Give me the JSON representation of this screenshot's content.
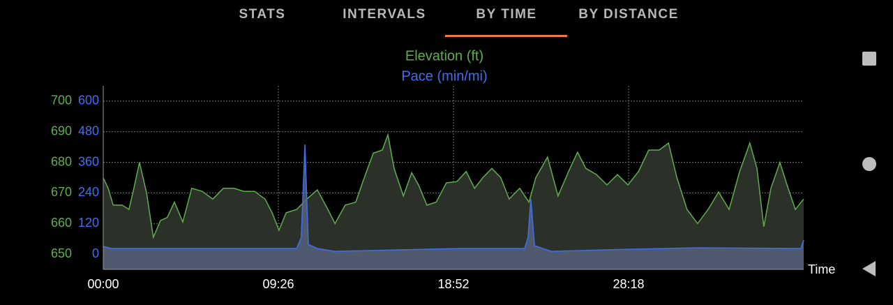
{
  "tabs": [
    "STATS",
    "INTERVALS",
    "BY TIME",
    "BY DISTANCE"
  ],
  "active_tab": 2,
  "chart_data": {
    "type": "area",
    "x_label": "Time",
    "xlim": [
      0,
      2264
    ],
    "xticks": [
      {
        "value": 0,
        "label": "00:00"
      },
      {
        "value": 566,
        "label": "09:26"
      },
      {
        "value": 1132,
        "label": "18:52"
      },
      {
        "value": 1698,
        "label": "28:18"
      }
    ],
    "ylim": [
      645,
      705
    ],
    "yticks": [
      650,
      660,
      670,
      680,
      690,
      700
    ],
    "y2lim": [
      -60,
      660
    ],
    "y2ticks": [
      0,
      120,
      240,
      360,
      480,
      600
    ],
    "grid": true,
    "series": [
      {
        "name": "Elevation (ft)",
        "color": "#5fae4e",
        "fill": "#2b3129",
        "x": [
          0,
          16,
          32,
          61,
          83,
          99,
          117,
          140,
          162,
          185,
          207,
          230,
          257,
          286,
          320,
          354,
          388,
          422,
          455,
          489,
          523,
          546,
          568,
          591,
          625,
          658,
          692,
          726,
          749,
          782,
          816,
          839,
          873,
          902,
          920,
          940,
          970,
          997,
          1019,
          1046,
          1076,
          1109,
          1143,
          1173,
          1200,
          1227,
          1256,
          1285,
          1312,
          1346,
          1376,
          1398,
          1436,
          1470,
          1504,
          1533,
          1560,
          1594,
          1628,
          1662,
          1696,
          1730,
          1763,
          1797,
          1827,
          1854,
          1887,
          1921,
          1955,
          1989,
          2023,
          2057,
          2090,
          2113,
          2135,
          2158,
          2187,
          2210,
          2237,
          2264
        ],
        "values": [
          674.9,
          671.5,
          666,
          666,
          664.6,
          671.5,
          680,
          670,
          655.5,
          661,
          662,
          667,
          660.5,
          671.5,
          670.5,
          668,
          671.5,
          671.5,
          670.5,
          670.5,
          668,
          663.5,
          657.8,
          663.5,
          664.6,
          668,
          671,
          664.6,
          660,
          666,
          667,
          673.7,
          683,
          684,
          689,
          678,
          669,
          676.6,
          672.6,
          666,
          667,
          673.3,
          673.7,
          677,
          671.5,
          675,
          678,
          675,
          668,
          671.5,
          667,
          675,
          681.7,
          669,
          677,
          683.3,
          678,
          676,
          672.6,
          676,
          672.6,
          677,
          684,
          684,
          686.3,
          675,
          664.6,
          660,
          664.6,
          670.3,
          664.6,
          677,
          686.3,
          678,
          659,
          671.5,
          680,
          672.6,
          664.6,
          668
        ]
      },
      {
        "name": "Pace (min/mi)",
        "color": "#3f6ef2",
        "fill": "#56627a",
        "axis": "y2",
        "x": [
          0,
          27,
          568,
          625,
          640,
          652,
          663,
          692,
          749,
          929,
          1155,
          1362,
          1373,
          1382,
          1394,
          1448,
          1696,
          1921,
          2255,
          2264
        ],
        "values": [
          30,
          22,
          22,
          22,
          66,
          430,
          38,
          22,
          11,
          16,
          22,
          22,
          66,
          216,
          33,
          11,
          19,
          25,
          22,
          55
        ]
      }
    ]
  }
}
